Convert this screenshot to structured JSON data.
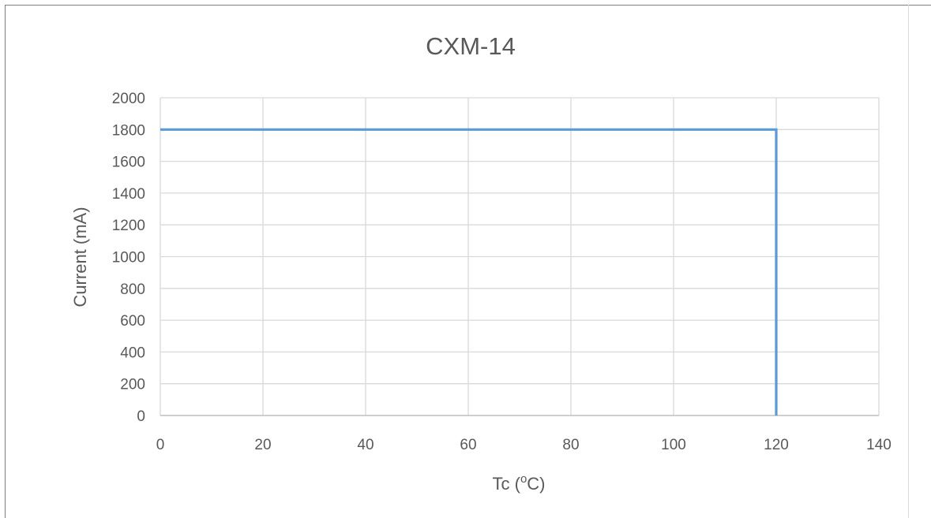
{
  "chart_data": {
    "type": "line",
    "title": "CXM-14",
    "xlabel": "Tc (",
    "xlabel_sup": "o",
    "xlabel_end": "C)",
    "ylabel": "Current (mA)",
    "xlim": [
      0,
      140
    ],
    "ylim": [
      0,
      2000
    ],
    "x_ticks": [
      0,
      20,
      40,
      60,
      80,
      100,
      120,
      140
    ],
    "y_ticks": [
      0,
      200,
      400,
      600,
      800,
      1000,
      1200,
      1400,
      1600,
      1800,
      2000
    ],
    "grid": true,
    "legend": "none",
    "series": [
      {
        "color": "#5b9bd5",
        "points": [
          {
            "x": 0,
            "y": 1800
          },
          {
            "x": 120,
            "y": 1800
          },
          {
            "x": 120,
            "y": 0
          }
        ]
      }
    ],
    "colors": {
      "grid": "#d9d9d9",
      "axis": "#bfbfbf",
      "text": "#595959"
    }
  }
}
